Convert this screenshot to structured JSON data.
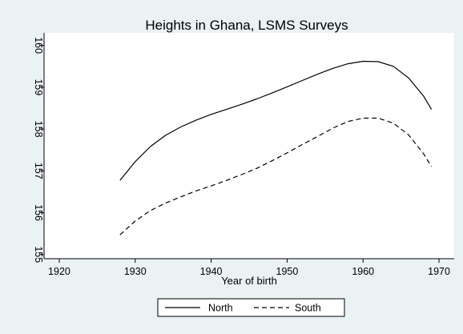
{
  "chart_data": {
    "type": "line",
    "title": "Heights in Ghana, LSMS Surveys",
    "xlabel": "Year of birth",
    "ylabel": "",
    "xlim": [
      1918,
      1972
    ],
    "ylim": [
      154.9,
      160.3
    ],
    "xticks": [
      1920,
      1930,
      1940,
      1950,
      1960,
      1970
    ],
    "yticks": [
      155,
      156,
      157,
      158,
      159,
      160
    ],
    "grid": false,
    "legend_position": "bottom-center",
    "series": [
      {
        "name": "North",
        "line_style": "solid",
        "x": [
          1928,
          1930,
          1932,
          1934,
          1936,
          1938,
          1940,
          1942,
          1944,
          1946,
          1948,
          1950,
          1952,
          1954,
          1956,
          1958,
          1960,
          1962,
          1964,
          1966,
          1968,
          1969
        ],
        "y": [
          156.77,
          157.22,
          157.58,
          157.85,
          158.05,
          158.21,
          158.35,
          158.47,
          158.59,
          158.72,
          158.86,
          159.01,
          159.16,
          159.31,
          159.45,
          159.56,
          159.62,
          159.61,
          159.5,
          159.22,
          158.78,
          158.47
        ]
      },
      {
        "name": "South",
        "line_style": "dashed",
        "x": [
          1928,
          1930,
          1932,
          1934,
          1936,
          1938,
          1940,
          1942,
          1944,
          1946,
          1948,
          1950,
          1952,
          1954,
          1956,
          1958,
          1960,
          1962,
          1964,
          1966,
          1968,
          1969
        ],
        "y": [
          155.47,
          155.8,
          156.05,
          156.23,
          156.38,
          156.52,
          156.64,
          156.77,
          156.91,
          157.06,
          157.24,
          157.43,
          157.63,
          157.82,
          158.02,
          158.18,
          158.26,
          158.26,
          158.14,
          157.86,
          157.4,
          157.1
        ]
      }
    ]
  }
}
